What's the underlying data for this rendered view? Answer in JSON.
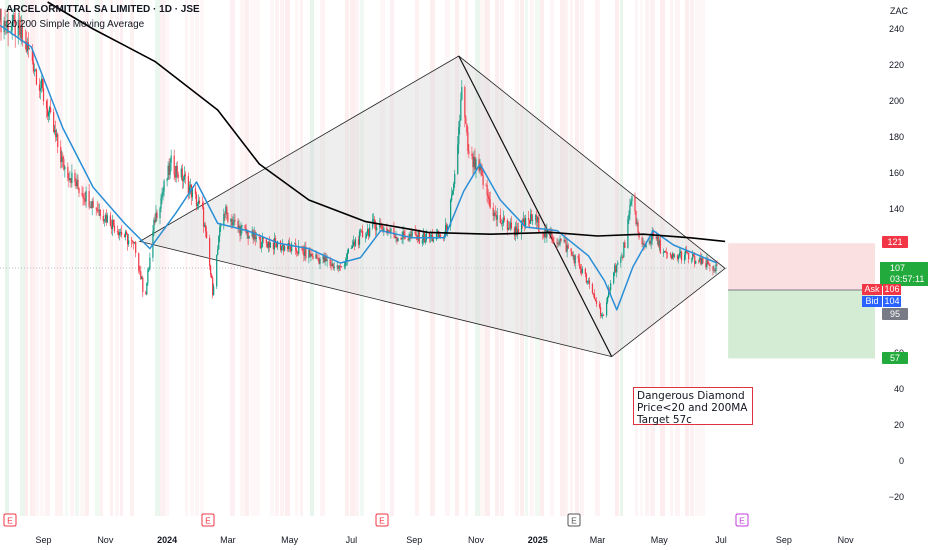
{
  "header": {
    "title": "ARCELORMITTAL SA LIMITED · 1D · JSE",
    "indicator": "20,200 Simple Moving Average",
    "currency_unit": "ZAC"
  },
  "price_scale": {
    "current_price": "107",
    "countdown": "03:57:11",
    "ask_label": "Ask",
    "ask_value": "106",
    "bid_label": "Bid",
    "bid_value": "104",
    "target_top_label": "121",
    "stop_label": "95",
    "target_label": "57"
  },
  "annotation": {
    "line1": "Dangerous Diamond",
    "line2": "Price<20 and 200MA",
    "line3": "Target 57c"
  },
  "event_markers": [
    {
      "label": "E",
      "kind": "earnings-past",
      "date": "2023-08"
    },
    {
      "label": "E",
      "kind": "earnings-past",
      "date": "2024-02"
    },
    {
      "label": "E",
      "kind": "earnings-past",
      "date": "2024-08"
    },
    {
      "label": "E",
      "kind": "earnings-dark",
      "date": "2025-02"
    },
    {
      "label": "E",
      "kind": "earnings-future",
      "date": "2025-07"
    }
  ],
  "colors": {
    "bull": "#089981",
    "bear": "#f23645",
    "sma20": "#2a8fd6",
    "sma200": "#000000",
    "pattern_fill": "#d9d9d9",
    "target_zone": "#d3ecd3",
    "stop_zone": "#fbe0e2"
  },
  "chart_data": {
    "type": "candlestick",
    "symbol": "ARCELORMITTAL SA LIMITED",
    "interval": "1D",
    "exchange": "JSE",
    "y_unit": "ZAC",
    "ylim": [
      -30,
      250
    ],
    "y_ticks": [
      -20,
      0,
      20,
      40,
      60,
      80,
      100,
      120,
      140,
      160,
      180,
      200,
      220,
      240
    ],
    "x_range": [
      "2023-07-20",
      "2025-11-30"
    ],
    "x_tick_labels": [
      "Sep",
      "Nov",
      "2024",
      "Mar",
      "May",
      "Jul",
      "Sep",
      "Nov",
      "2025",
      "Mar",
      "May",
      "Jul",
      "Sep",
      "Nov"
    ],
    "x_tick_dates": [
      "2023-09-01",
      "2023-11-01",
      "2024-01-01",
      "2024-03-01",
      "2024-05-01",
      "2024-07-01",
      "2024-09-01",
      "2024-11-01",
      "2025-01-01",
      "2025-03-01",
      "2025-05-01",
      "2025-07-01",
      "2025-09-01",
      "2025-11-01"
    ],
    "close_path": [
      [
        "2023-07-20",
        245
      ],
      [
        "2023-08-05",
        240
      ],
      [
        "2023-08-20",
        225
      ],
      [
        "2023-09-05",
        195
      ],
      [
        "2023-09-20",
        165
      ],
      [
        "2023-10-05",
        152
      ],
      [
        "2023-10-25",
        140
      ],
      [
        "2023-11-15",
        128
      ],
      [
        "2023-12-01",
        118
      ],
      [
        "2023-12-10",
        90
      ],
      [
        "2023-12-20",
        135
      ],
      [
        "2024-01-05",
        165
      ],
      [
        "2024-01-20",
        155
      ],
      [
        "2024-02-05",
        138
      ],
      [
        "2024-02-15",
        95
      ],
      [
        "2024-02-25",
        140
      ],
      [
        "2024-03-10",
        130
      ],
      [
        "2024-04-01",
        122
      ],
      [
        "2024-04-20",
        120
      ],
      [
        "2024-05-10",
        117
      ],
      [
        "2024-06-01",
        112
      ],
      [
        "2024-06-20",
        107
      ],
      [
        "2024-07-05",
        122
      ],
      [
        "2024-07-25",
        132
      ],
      [
        "2024-08-15",
        125
      ],
      [
        "2024-09-15",
        124
      ],
      [
        "2024-10-01",
        125
      ],
      [
        "2024-10-10",
        150
      ],
      [
        "2024-10-18",
        205
      ],
      [
        "2024-10-25",
        168
      ],
      [
        "2024-11-05",
        160
      ],
      [
        "2024-11-20",
        135
      ],
      [
        "2024-12-10",
        128
      ],
      [
        "2024-12-28",
        135
      ],
      [
        "2025-01-10",
        125
      ],
      [
        "2025-01-25",
        122
      ],
      [
        "2025-02-10",
        110
      ],
      [
        "2025-02-25",
        92
      ],
      [
        "2025-03-08",
        78
      ],
      [
        "2025-03-15",
        105
      ],
      [
        "2025-03-25",
        112
      ],
      [
        "2025-04-05",
        148
      ],
      [
        "2025-04-12",
        118
      ],
      [
        "2025-04-25",
        125
      ],
      [
        "2025-05-10",
        112
      ],
      [
        "2025-05-25",
        115
      ],
      [
        "2025-06-10",
        110
      ],
      [
        "2025-06-27",
        107
      ]
    ],
    "sma20_path": [
      [
        "2023-07-20",
        242
      ],
      [
        "2023-08-20",
        230
      ],
      [
        "2023-09-20",
        185
      ],
      [
        "2023-10-20",
        152
      ],
      [
        "2023-11-20",
        132
      ],
      [
        "2023-12-15",
        118
      ],
      [
        "2024-01-10",
        138
      ],
      [
        "2024-01-30",
        155
      ],
      [
        "2024-02-20",
        132
      ],
      [
        "2024-03-20",
        128
      ],
      [
        "2024-04-20",
        121
      ],
      [
        "2024-05-20",
        118
      ],
      [
        "2024-06-20",
        110
      ],
      [
        "2024-07-10",
        113
      ],
      [
        "2024-07-30",
        128
      ],
      [
        "2024-08-30",
        124
      ],
      [
        "2024-10-01",
        124
      ],
      [
        "2024-10-20",
        150
      ],
      [
        "2024-11-05",
        165
      ],
      [
        "2024-11-25",
        145
      ],
      [
        "2024-12-20",
        130
      ],
      [
        "2025-01-20",
        128
      ],
      [
        "2025-02-20",
        114
      ],
      [
        "2025-03-08",
        100
      ],
      [
        "2025-03-20",
        84
      ],
      [
        "2025-04-05",
        108
      ],
      [
        "2025-04-25",
        128
      ],
      [
        "2025-05-15",
        120
      ],
      [
        "2025-06-10",
        114
      ],
      [
        "2025-06-27",
        110
      ]
    ],
    "sma200_path": [
      [
        "2023-09-05",
        255
      ],
      [
        "2023-10-20",
        240
      ],
      [
        "2023-12-20",
        222
      ],
      [
        "2024-02-20",
        195
      ],
      [
        "2024-04-01",
        165
      ],
      [
        "2024-05-20",
        145
      ],
      [
        "2024-07-15",
        133
      ],
      [
        "2024-09-15",
        127
      ],
      [
        "2024-11-15",
        126
      ],
      [
        "2025-01-15",
        127
      ],
      [
        "2025-03-01",
        125
      ],
      [
        "2025-04-15",
        126
      ],
      [
        "2025-06-01",
        124
      ],
      [
        "2025-07-05",
        122
      ]
    ],
    "pattern": {
      "name": "Dangerous Diamond",
      "vertices": [
        [
          "2023-12-05",
          122
        ],
        [
          "2024-10-15",
          225
        ],
        [
          "2025-07-05",
          107
        ],
        [
          "2025-03-15",
          58
        ]
      ]
    },
    "trade_zones": {
      "stop_top": 121,
      "entry": 95,
      "target": 57
    },
    "annotations": [
      "Dangerous Diamond",
      "Price<20 and 200MA",
      "Target 57c"
    ]
  }
}
